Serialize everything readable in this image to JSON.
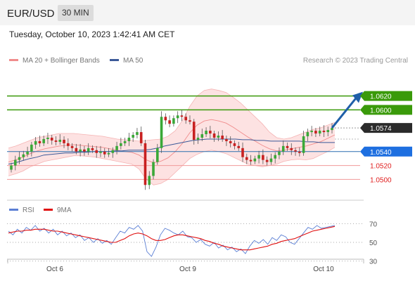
{
  "header": {
    "symbol": "EUR/USD",
    "timeframe": "30 MIN"
  },
  "timestamp": "Tuesday, October 10, 2023 1:42:41 AM CET",
  "legend": {
    "bb": {
      "label": "MA 20 + Bollinger Bands",
      "color": "#f08c8c"
    },
    "ma50": {
      "label": "MA 50",
      "color": "#3b5998"
    },
    "rsi": {
      "label": "RSI",
      "color": "#5b7fd4"
    },
    "rsi_ma": {
      "label": "9MA",
      "color": "#e01010"
    }
  },
  "copyright": "Research © 2023 Trading Central",
  "chart_data": [
    {
      "type": "candlestick",
      "ylim": [
        1.0465,
        1.066
      ],
      "x_labels": [
        "Oct 6",
        "Oct 9",
        "Oct 10"
      ],
      "levels": [
        {
          "value": 1.062,
          "label": "1.0620",
          "style": "resistance",
          "color": "#3a9a0a"
        },
        {
          "value": 1.06,
          "label": "1.0600",
          "style": "resistance",
          "color": "#3a9a0a"
        },
        {
          "value": 1.0574,
          "label": "1.0574",
          "style": "last",
          "color": "#2b2b2b"
        },
        {
          "value": 1.054,
          "label": "1.0540",
          "style": "pivot",
          "color": "#1e6fe0"
        },
        {
          "value": 1.052,
          "label": "1.0520",
          "style": "support",
          "color": "#e02020"
        },
        {
          "value": 1.05,
          "label": "1.0500",
          "style": "support",
          "color": "#e02020"
        }
      ],
      "candles_close": [
        1.052,
        1.0528,
        1.0532,
        1.0536,
        1.054,
        1.055,
        1.0555,
        1.0552,
        1.0558,
        1.056,
        1.0556,
        1.0554,
        1.0557,
        1.0552,
        1.0548,
        1.0545,
        1.054,
        1.0543,
        1.054,
        1.0545,
        1.0542,
        1.0538,
        1.054,
        1.0536,
        1.0538,
        1.0542,
        1.0548,
        1.0552,
        1.0555,
        1.056,
        1.0564,
        1.0568,
        1.0552,
        1.0492,
        1.0505,
        1.0525,
        1.0545,
        1.059,
        1.0585,
        1.058,
        1.0588,
        1.0592,
        1.059,
        1.0585,
        1.0583,
        1.0557,
        1.056,
        1.0565,
        1.057,
        1.0566,
        1.056,
        1.0563,
        1.0558,
        1.0555,
        1.0552,
        1.0548,
        1.0545,
        1.0532,
        1.0528,
        1.0526,
        1.053,
        1.0535,
        1.0528,
        1.0525,
        1.053,
        1.0535,
        1.054,
        1.0548,
        1.0545,
        1.0542,
        1.054,
        1.0538,
        1.0562,
        1.0568,
        1.057,
        1.0566,
        1.057,
        1.0568,
        1.0571,
        1.0574
      ],
      "bollinger": {
        "upper": [
          1.0545,
          1.0548,
          1.0552,
          1.0556,
          1.056,
          1.0562,
          1.0564,
          1.0566,
          1.0566,
          1.0566,
          1.0565,
          1.0564,
          1.0563,
          1.0562,
          1.056,
          1.0558,
          1.0557,
          1.0556,
          1.0555,
          1.0556,
          1.0557,
          1.0558,
          1.0562,
          1.057,
          1.0585,
          1.0605,
          1.062,
          1.0628,
          1.063,
          1.0628,
          1.0625,
          1.0618,
          1.061,
          1.06,
          1.059,
          1.058,
          1.0568,
          1.056,
          1.0558,
          1.056,
          1.0564,
          1.0568,
          1.0572,
          1.0574,
          1.0578,
          1.0582
        ],
        "lower": [
          1.0505,
          1.0508,
          1.0512,
          1.0518,
          1.0522,
          1.0526,
          1.0528,
          1.053,
          1.0532,
          1.0534,
          1.0534,
          1.0533,
          1.0532,
          1.053,
          1.0528,
          1.0526,
          1.0524,
          1.0522,
          1.0515,
          1.05,
          1.0492,
          1.0494,
          1.05,
          1.051,
          1.052,
          1.053,
          1.0536,
          1.054,
          1.0542,
          1.054,
          1.0537,
          1.0532,
          1.0527,
          1.0522,
          1.052,
          1.0518,
          1.052,
          1.0522,
          1.0526,
          1.0528,
          1.0529,
          1.0528,
          1.053,
          1.0535,
          1.054,
          1.0546
        ],
        "ma20": [
          1.0525,
          1.0528,
          1.0532,
          1.0537,
          1.0541,
          1.0544,
          1.0546,
          1.0548,
          1.0549,
          1.055,
          1.0549,
          1.0548,
          1.0547,
          1.0546,
          1.0544,
          1.0542,
          1.054,
          1.0539,
          1.0535,
          1.0528,
          1.0524,
          1.0526,
          1.0531,
          1.054,
          1.0552,
          1.0567,
          1.0578,
          1.0584,
          1.0586,
          1.0584,
          1.0581,
          1.0575,
          1.0568,
          1.0561,
          1.0555,
          1.0549,
          1.0544,
          1.0541,
          1.0542,
          1.0544,
          1.0546,
          1.0548,
          1.0551,
          1.0554,
          1.0559,
          1.0564
        ]
      },
      "ma50": [
        1.0522,
        1.0524,
        1.0527,
        1.053,
        1.0532,
        1.0535,
        1.0536,
        1.0537,
        1.0538,
        1.0538,
        1.0539,
        1.0539,
        1.054,
        1.054,
        1.054,
        1.0541,
        1.0541,
        1.0542,
        1.0542,
        1.0542,
        1.0543,
        1.0545,
        1.0548,
        1.055,
        1.0552,
        1.0554,
        1.0556,
        1.0557,
        1.0558,
        1.0558,
        1.0558,
        1.0558,
        1.0558,
        1.0557,
        1.0557,
        1.0556,
        1.0556,
        1.0555,
        1.0555,
        1.0555,
        1.0555,
        1.0555,
        1.0554,
        1.0554,
        1.0553,
        1.0553,
        1.0553
      ]
    },
    {
      "type": "line",
      "ylim": [
        20,
        80
      ],
      "y_ticks": [
        70,
        50,
        30
      ],
      "rsi": [
        62,
        58,
        64,
        60,
        66,
        63,
        68,
        62,
        65,
        60,
        64,
        58,
        62,
        57,
        60,
        55,
        58,
        52,
        55,
        50,
        54,
        49,
        52,
        48,
        55,
        62,
        60,
        66,
        64,
        68,
        62,
        40,
        35,
        45,
        58,
        65,
        63,
        60,
        58,
        62,
        56,
        55,
        50,
        53,
        48,
        46,
        50,
        44,
        47,
        42,
        45,
        40,
        43,
        38,
        46,
        52,
        49,
        53,
        48,
        55,
        52,
        58,
        56,
        50,
        48,
        54,
        60,
        66,
        64,
        68,
        65,
        66,
        67,
        68
      ],
      "rsi_ma": [
        60,
        61,
        62,
        62,
        63,
        63,
        64,
        64,
        64,
        63,
        62,
        62,
        61,
        60,
        59,
        58,
        57,
        56,
        55,
        54,
        53,
        52,
        51,
        50,
        50,
        52,
        54,
        57,
        59,
        60,
        59,
        57,
        54,
        52,
        52,
        53,
        55,
        57,
        58,
        58,
        57,
        56,
        55,
        54,
        52,
        51,
        49,
        48,
        46,
        45,
        44,
        43,
        42,
        42,
        42,
        43,
        44,
        45,
        46,
        48,
        49,
        51,
        52,
        53,
        54,
        56,
        58,
        60,
        62,
        63,
        64,
        65,
        66,
        67
      ]
    }
  ]
}
